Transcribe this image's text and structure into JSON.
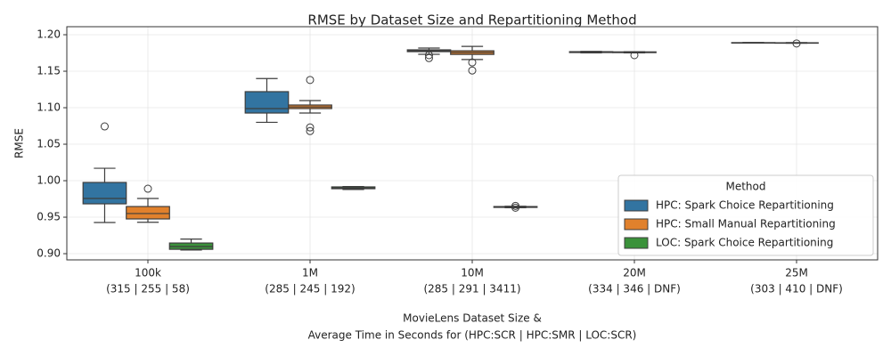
{
  "chart_data": {
    "type": "boxplot",
    "title": "RMSE by Dataset Size and Repartitioning Method",
    "ylabel": "RMSE",
    "xlabel": [
      "MovieLens Dataset Size &",
      "Average Time in Seconds for (HPC:SCR | HPC:SMR | LOC:SCR)"
    ],
    "categories": [
      "100k",
      "1M",
      "10M",
      "20M",
      "25M"
    ],
    "category_sublabels": [
      "(315 | 255 | 58)",
      "(285 | 245 | 192)",
      "(285 | 291 | 3411)",
      "(334 | 346 | DNF)",
      "(303 | 410 | DNF)"
    ],
    "ylim": [
      0.8915,
      1.211
    ],
    "yticks": [
      {
        "value": 0.9,
        "label": "0.90"
      },
      0.95,
      {
        "value": 1.0,
        "label": "1.00"
      },
      1.05,
      {
        "value": 1.1,
        "label": "1.10"
      },
      1.15,
      {
        "value": 1.2,
        "label": "1.20"
      }
    ],
    "grid": true,
    "legend_title": "Method",
    "legend_position": "lower right",
    "series": [
      {
        "name": "HPC: Spark Choice Repartitioning",
        "color": "#3274a1",
        "values": [
          {
            "whislo": 0.9427,
            "q1": 0.9683,
            "median": 0.9756,
            "q3": 0.9976,
            "whishi": 1.017,
            "fliers": [
              1.0744
            ]
          },
          {
            "whislo": 1.08,
            "q1": 1.0927,
            "median": 1.0988,
            "q3": 1.122,
            "whishi": 1.14,
            "fliers": []
          },
          {
            "whislo": 1.1732,
            "q1": 1.1768,
            "median": 1.178,
            "q3": 1.1793,
            "whishi": 1.1817,
            "fliers": [
              1.172,
              1.168
            ]
          },
          {
            "whislo": 1.1752,
            "q1": 1.1756,
            "median": 1.176,
            "q3": 1.1768,
            "whishi": 1.1772,
            "fliers": []
          },
          {
            "whislo": 1.1886,
            "q1": 1.1888,
            "median": 1.189,
            "q3": 1.1892,
            "whishi": 1.1894,
            "fliers": []
          }
        ]
      },
      {
        "name": "HPC: Small Manual Repartitioning",
        "color": "#e1812c",
        "values": [
          {
            "whislo": 0.943,
            "q1": 0.9476,
            "median": 0.955,
            "q3": 0.9646,
            "whishi": 0.9756,
            "fliers": [
              0.989
            ]
          },
          {
            "whislo": 1.0927,
            "q1": 1.0988,
            "median": 1.101,
            "q3": 1.1037,
            "whishi": 1.1098,
            "fliers": [
              1.138,
              1.073,
              1.068
            ]
          },
          {
            "whislo": 1.166,
            "q1": 1.173,
            "median": 1.1756,
            "q3": 1.178,
            "whishi": 1.184,
            "fliers": [
              1.162,
              1.151
            ]
          },
          {
            "whislo": 1.1752,
            "q1": 1.1755,
            "median": 1.176,
            "q3": 1.1765,
            "whishi": 1.1768,
            "fliers": [
              1.172
            ]
          },
          {
            "whislo": 1.1884,
            "q1": 1.1886,
            "median": 1.1888,
            "q3": 1.189,
            "whishi": 1.1892,
            "fliers": [
              1.188
            ]
          }
        ]
      },
      {
        "name": "LOC: Spark Choice Repartitioning",
        "color": "#3a923a",
        "values": [
          {
            "whislo": 0.905,
            "q1": 0.906,
            "median": 0.9098,
            "q3": 0.9146,
            "whishi": 0.92,
            "fliers": []
          },
          {
            "whislo": 0.988,
            "q1": 0.989,
            "median": 0.99,
            "q3": 0.9915,
            "whishi": 0.992,
            "fliers": []
          },
          {
            "whislo": 0.963,
            "q1": 0.9634,
            "median": 0.964,
            "q3": 0.9646,
            "whishi": 0.965,
            "fliers": [
              0.9655,
              0.963
            ]
          },
          null,
          null
        ]
      }
    ]
  }
}
